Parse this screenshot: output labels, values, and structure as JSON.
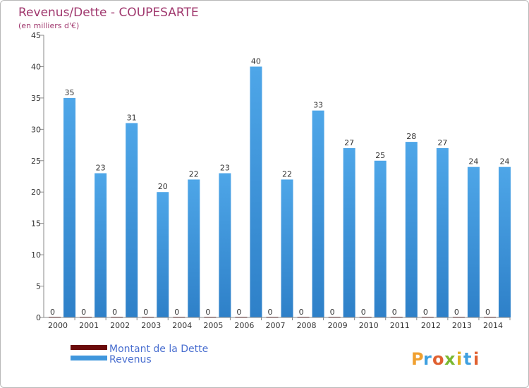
{
  "chart_data": {
    "type": "bar",
    "title": "Revenus/Dette - COUPESARTE",
    "subtitle": "(en milliers d'€)",
    "categories": [
      "2000",
      "2001",
      "2002",
      "2003",
      "2004",
      "2005",
      "2006",
      "2007",
      "2008",
      "2009",
      "2010",
      "2011",
      "2012",
      "2013",
      "2014"
    ],
    "series": [
      {
        "name": "Montant de la Dette",
        "values": [
          0,
          0,
          0,
          0,
          0,
          0,
          0,
          0,
          0,
          0,
          0,
          0,
          0,
          0,
          0
        ],
        "color": "#6b0b0b"
      },
      {
        "name": "Revenus",
        "values": [
          35,
          23,
          31,
          20,
          22,
          23,
          40,
          22,
          33,
          27,
          25,
          28,
          27,
          24,
          24
        ],
        "color": "#3f96dc"
      }
    ],
    "yticks": [
      0,
      5,
      10,
      15,
      20,
      25,
      30,
      35,
      40,
      45
    ],
    "ylim": [
      0,
      45
    ],
    "xlabel": "",
    "ylabel": "",
    "grid": false,
    "legend_position": "bottom-left"
  },
  "brand": {
    "letters": [
      "P",
      "r",
      "o",
      "x",
      "i",
      "t",
      "i"
    ],
    "colors": [
      "#f0a030",
      "#3fa0e0",
      "#e06030",
      "#7ab830",
      "#e0b020",
      "#3fa0e0",
      "#e06030"
    ]
  }
}
